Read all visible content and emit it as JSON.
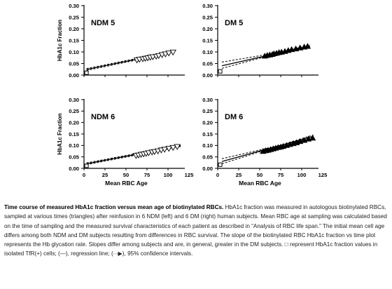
{
  "chart_data": [
    {
      "type": "scatter",
      "panel_label": "NDM 5",
      "ylabel": "HbA1c Fraction",
      "xlabel": "",
      "xlim": [
        0,
        120
      ],
      "ylim": [
        0.0,
        0.3
      ],
      "yticks": [
        "0.00",
        "0.05",
        "0.10",
        "0.15",
        "0.20",
        "0.25",
        "0.30"
      ],
      "xticks": [],
      "series": [
        {
          "marker": "triangle-down-open",
          "x": [
            63,
            66,
            70,
            73,
            76,
            79,
            82,
            86,
            89,
            93,
            97,
            101,
            106
          ],
          "y": [
            0.065,
            0.068,
            0.07,
            0.072,
            0.074,
            0.077,
            0.079,
            0.081,
            0.084,
            0.088,
            0.091,
            0.095,
            0.099
          ]
        },
        {
          "marker": "square-open",
          "x": [
            3
          ],
          "y": [
            0.01
          ]
        }
      ],
      "regression": {
        "x": [
          3,
          108
        ],
        "y": [
          0.024,
          0.102
        ]
      },
      "ci_upper": {
        "x": [
          3,
          108
        ],
        "y": [
          0.028,
          0.105
        ]
      },
      "ci_lower": {
        "x": [
          3,
          108
        ],
        "y": [
          0.02,
          0.099
        ]
      }
    },
    {
      "type": "scatter",
      "panel_label": "DM 5",
      "ylabel": "",
      "xlabel": "",
      "xlim": [
        0,
        120
      ],
      "ylim": [
        0.0,
        0.3
      ],
      "yticks": [
        "0.00",
        "0.05",
        "0.10",
        "0.15",
        "0.20",
        "0.25",
        "0.30"
      ],
      "xticks": [],
      "series": [
        {
          "marker": "triangle-up-filled",
          "x": [
            56,
            59,
            62,
            65,
            67,
            70,
            73,
            76,
            80,
            84,
            88,
            93,
            98,
            103,
            107
          ],
          "y": [
            0.082,
            0.085,
            0.087,
            0.089,
            0.092,
            0.094,
            0.097,
            0.099,
            0.102,
            0.106,
            0.11,
            0.113,
            0.117,
            0.121,
            0.124
          ]
        },
        {
          "marker": "square-open",
          "x": [
            3
          ],
          "y": [
            0.016
          ]
        }
      ],
      "regression": {
        "x": [
          5,
          110
        ],
        "y": [
          0.04,
          0.126
        ]
      },
      "ci_upper": {
        "x": [
          5,
          110
        ],
        "y": [
          0.056,
          0.12
        ]
      },
      "ci_lower": {
        "x": [
          5,
          110
        ],
        "y": [
          0.029,
          0.131
        ]
      }
    },
    {
      "type": "scatter",
      "panel_label": "NDM 6",
      "ylabel": "HbA1c Fraction",
      "xlabel": "Mean RBC Age",
      "xlim": [
        0,
        120
      ],
      "ylim": [
        0.0,
        0.3
      ],
      "yticks": [
        "0.00",
        "0.05",
        "0.10",
        "0.15",
        "0.20",
        "0.25",
        "0.30"
      ],
      "xticks": [
        "0",
        "25",
        "50",
        "75",
        "100",
        "125"
      ],
      "series": [
        {
          "marker": "triangle-down-open",
          "x": [
            62,
            65,
            68,
            71,
            74,
            77,
            81,
            84,
            88,
            92,
            96,
            101,
            106,
            111
          ],
          "y": [
            0.056,
            0.058,
            0.061,
            0.063,
            0.065,
            0.068,
            0.071,
            0.073,
            0.076,
            0.08,
            0.083,
            0.087,
            0.091,
            0.095
          ]
        },
        {
          "marker": "square-open",
          "x": [
            3
          ],
          "y": [
            0.011
          ]
        }
      ],
      "regression": {
        "x": [
          3,
          115
        ],
        "y": [
          0.02,
          0.098
        ]
      },
      "ci_upper": {
        "x": [
          3,
          115
        ],
        "y": [
          0.024,
          0.101
        ]
      },
      "ci_lower": {
        "x": [
          3,
          115
        ],
        "y": [
          0.016,
          0.095
        ]
      }
    },
    {
      "type": "scatter",
      "panel_label": "DM 6",
      "ylabel": "",
      "xlabel": "Mean RBC Age",
      "xlim": [
        0,
        120
      ],
      "ylim": [
        0.0,
        0.3
      ],
      "yticks": [
        "0.00",
        "0.05",
        "0.10",
        "0.15",
        "0.20",
        "0.25",
        "0.30"
      ],
      "xticks": [
        "0",
        "25",
        "50",
        "75",
        "100",
        "125"
      ],
      "series": [
        {
          "marker": "triangle-up-filled",
          "x": [
            54,
            57,
            60,
            63,
            66,
            69,
            72,
            75,
            78,
            82,
            86,
            90,
            94,
            98,
            103,
            108,
            113
          ],
          "y": [
            0.074,
            0.077,
            0.079,
            0.082,
            0.085,
            0.088,
            0.091,
            0.093,
            0.096,
            0.1,
            0.104,
            0.108,
            0.112,
            0.117,
            0.122,
            0.128,
            0.132
          ]
        },
        {
          "marker": "square-open",
          "x": [
            3
          ],
          "y": [
            0.016
          ]
        }
      ],
      "regression": {
        "x": [
          5,
          114
        ],
        "y": [
          0.03,
          0.14
        ]
      },
      "ci_upper": {
        "x": [
          5,
          114
        ],
        "y": [
          0.042,
          0.134
        ]
      },
      "ci_lower": {
        "x": [
          5,
          114
        ],
        "y": [
          0.02,
          0.146
        ]
      }
    }
  ],
  "caption": {
    "title": "Time course of measured HbA1c fraction versus mean age of biotinylated RBCs.",
    "body": " HbA1c fraction was measured in autologous biotinylated RBCs, sampled at various times (triangles) after reinfusion in 6 NDM (left) and 6 DM (right) human subjects. Mean RBC age at sampling was calculated based on the time of sampling and the measured survival characteristics of each patient as described in “Analysis of RBC life span.” The initial mean cell age differs among both NDM and DM subjects resulting from differences in RBC survival. The slope of the biotinylated RBC HbA1c fraction vs time plot represents the Hb glycation rate. Slopes differ among subjects and are, in general, greater in the DM subjects. □ represent HbA1c fraction values in isolated TfR(+) cells; (—), regression line; (∙∙∙▶), 95% confidence intervals."
  }
}
